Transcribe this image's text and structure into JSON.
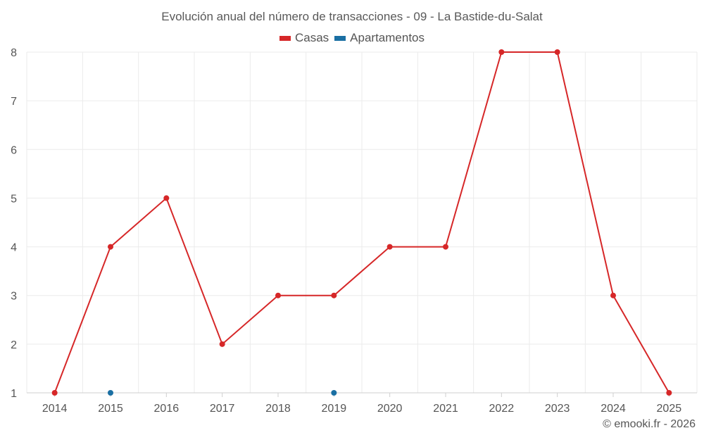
{
  "chart_data": {
    "type": "line",
    "title": "Evolución anual del número de transacciones - 09 - La Bastide-du-Salat",
    "xlabel": "",
    "ylabel": "",
    "categories": [
      "2014",
      "2015",
      "2016",
      "2017",
      "2018",
      "2019",
      "2020",
      "2021",
      "2022",
      "2023",
      "2024",
      "2025"
    ],
    "ylim": [
      1,
      8
    ],
    "yticks": [
      1,
      2,
      3,
      4,
      5,
      6,
      7,
      8
    ],
    "grid": true,
    "legend_position": "top-center",
    "series": [
      {
        "name": "Casas",
        "color": "#d62728",
        "values": [
          1,
          4,
          5,
          2,
          3,
          3,
          4,
          4,
          8,
          8,
          3,
          1
        ]
      },
      {
        "name": "Apartamentos",
        "color": "#1a6fa3",
        "values": [
          null,
          1,
          null,
          null,
          null,
          1,
          null,
          null,
          null,
          null,
          null,
          null
        ]
      }
    ]
  },
  "footer": {
    "copyright": "© emooki.fr - 2026"
  }
}
